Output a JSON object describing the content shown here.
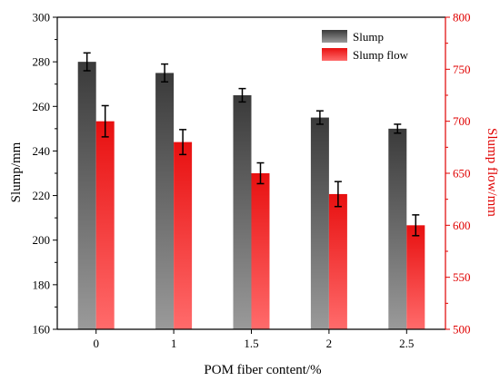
{
  "chart_data": {
    "type": "bar",
    "categories": [
      "0",
      "1",
      "1.5",
      "2",
      "2.5"
    ],
    "xlabel": "POM fiber content/%",
    "series": [
      {
        "name": "Slump",
        "axis": "left",
        "values": [
          280,
          275,
          265,
          255,
          250
        ],
        "errors": [
          4,
          4,
          3,
          3,
          2
        ],
        "color_top": "#3a3a3a",
        "color_bottom": "#9a9a9a"
      },
      {
        "name": "Slump flow",
        "axis": "right",
        "values": [
          700,
          680,
          650,
          630,
          600
        ],
        "errors": [
          15,
          12,
          10,
          12,
          10
        ],
        "color_top": "#e81010",
        "color_bottom": "#ff6b6b"
      }
    ],
    "y_left": {
      "label": "Slump/mm",
      "ylim": [
        160,
        300
      ],
      "ticks": [
        "160",
        "180",
        "200",
        "220",
        "240",
        "260",
        "280",
        "300"
      ]
    },
    "y_right": {
      "label": "Slump flow/mm",
      "ylim": [
        500,
        800
      ],
      "ticks": [
        "500",
        "550",
        "600",
        "650",
        "700",
        "750",
        "800"
      ],
      "color": "#e00000"
    },
    "legend_position": "top-right",
    "grid": false
  }
}
